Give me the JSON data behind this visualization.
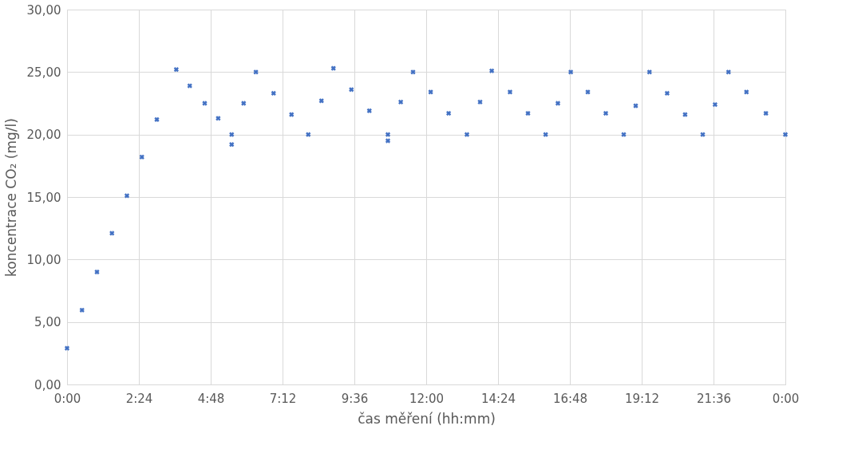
{
  "chart_data": {
    "type": "scatter",
    "xlabel": "čas měření (hh:mm)",
    "ylabel": "koncentrace CO₂ (mg/l)",
    "x": [
      0,
      0.5,
      1,
      1.5,
      2,
      2.5,
      3,
      3.65,
      4.1,
      4.6,
      5.05,
      5.5,
      5.5,
      5.9,
      6.31,
      6.9,
      7.5,
      8.06,
      8.5,
      8.9,
      9.5,
      10.1,
      10.72,
      10.72,
      11.15,
      11.56,
      12.15,
      12.75,
      13.36,
      13.8,
      14.19,
      14.8,
      15.4,
      15.99,
      16.4,
      16.83,
      17.4,
      18.0,
      18.6,
      19.0,
      19.46,
      20.05,
      20.65,
      21.24,
      21.65,
      22.1,
      22.7,
      23.35,
      24
    ],
    "series": [
      {
        "color": "#4472c4",
        "values": [
          2.9,
          5.95,
          9.0,
          12.1,
          15.1,
          18.2,
          21.2,
          25.2,
          23.9,
          22.5,
          21.3,
          20.0,
          19.2,
          22.5,
          25.0,
          23.3,
          21.6,
          20.0,
          22.7,
          25.3,
          23.6,
          21.9,
          20.0,
          19.5,
          22.6,
          25.0,
          23.4,
          21.7,
          20.0,
          22.6,
          25.1,
          23.4,
          21.7,
          20.0,
          22.5,
          25.0,
          23.4,
          21.7,
          20.0,
          22.3,
          25.0,
          23.3,
          21.6,
          20.0,
          22.4,
          25.0,
          23.4,
          21.7,
          20.0
        ]
      }
    ],
    "xlim": [
      0,
      24
    ],
    "xticks": [
      {
        "value": 0,
        "label": "0:00"
      },
      {
        "value": 2.4,
        "label": "2:24"
      },
      {
        "value": 4.8,
        "label": "4:48"
      },
      {
        "value": 7.2,
        "label": "7:12"
      },
      {
        "value": 9.6,
        "label": "9:36"
      },
      {
        "value": 12,
        "label": "12:00"
      },
      {
        "value": 14.4,
        "label": "14:24"
      },
      {
        "value": 16.8,
        "label": "16:48"
      },
      {
        "value": 19.2,
        "label": "19:12"
      },
      {
        "value": 21.6,
        "label": "21:36"
      },
      {
        "value": 24,
        "label": "0:00"
      }
    ],
    "ylim": [
      0,
      30
    ],
    "yticks": [
      {
        "value": 0,
        "label": "0,00"
      },
      {
        "value": 5,
        "label": "5,00"
      },
      {
        "value": 10,
        "label": "10,00"
      },
      {
        "value": 15,
        "label": "15,00"
      },
      {
        "value": 20,
        "label": "20,00"
      },
      {
        "value": 25,
        "label": "25,00"
      },
      {
        "value": 30,
        "label": "30,00"
      }
    ],
    "grid": true,
    "marker": "cross"
  }
}
